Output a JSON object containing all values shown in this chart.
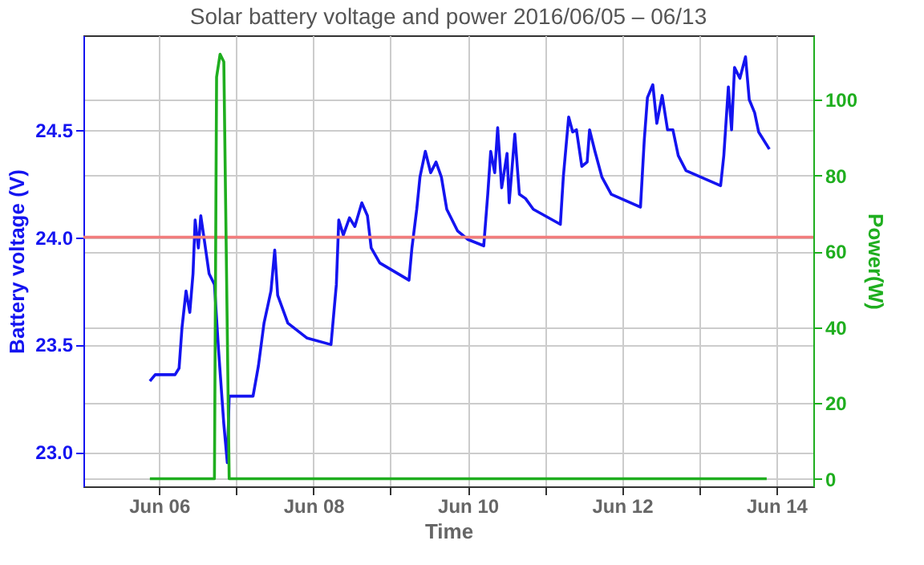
{
  "chart_data": {
    "type": "line",
    "title": "Solar battery voltage and power   2016/06/05 – 06/13",
    "xlabel": "Time",
    "ylabel": "Battery voltage (V)",
    "y2label": "Power(W)",
    "x": [
      "2016-06-05T21:10",
      "2016-06-05T22:50",
      "2016-06-06T05:00",
      "2016-06-06T06:15",
      "2016-06-06T07:10",
      "2016-06-06T08:25",
      "2016-06-06T09:35",
      "2016-06-06T10:35",
      "2016-06-06T11:15",
      "2016-06-06T12:15",
      "2016-06-06T13:00",
      "2016-06-06T14:10",
      "2016-06-06T15:35",
      "2016-06-06T17:15",
      "2016-06-06T18:30",
      "2016-06-06T20:10",
      "2016-06-06T21:15",
      "2016-06-06T21:50",
      "2016-06-07T05:15",
      "2016-06-07T06:55",
      "2016-06-07T08:40",
      "2016-06-07T09:50",
      "2016-06-07T10:50",
      "2016-06-07T12:00",
      "2016-06-07T12:55",
      "2016-06-07T16:05",
      "2016-06-07T22:05",
      "2016-06-08T05:30",
      "2016-06-08T07:10",
      "2016-06-08T07:55",
      "2016-06-08T09:20",
      "2016-06-08T11:15",
      "2016-06-08T12:55",
      "2016-06-08T15:05",
      "2016-06-08T16:50",
      "2016-06-08T18:00",
      "2016-06-08T20:40",
      "2016-06-09T05:45",
      "2016-06-09T06:40",
      "2016-06-09T08:10",
      "2016-06-09T09:10",
      "2016-06-09T10:50",
      "2016-06-09T12:30",
      "2016-06-09T14:10",
      "2016-06-09T15:50",
      "2016-06-09T17:30",
      "2016-06-09T20:50",
      "2016-06-10T00:00",
      "2016-06-10T05:00",
      "2016-06-10T06:15",
      "2016-06-10T07:10",
      "2016-06-10T08:25",
      "2016-06-10T09:20",
      "2016-06-10T10:35",
      "2016-06-10T12:15",
      "2016-06-10T12:55",
      "2016-06-10T14:40",
      "2016-06-10T16:05",
      "2016-06-10T18:00",
      "2016-06-10T20:25",
      "2016-06-11T04:50",
      "2016-06-11T05:45",
      "2016-06-11T07:25",
      "2016-06-11T08:40",
      "2016-06-11T09:50",
      "2016-06-11T11:30",
      "2016-06-11T13:10",
      "2016-06-11T13:55",
      "2016-06-11T15:35",
      "2016-06-11T17:45",
      "2016-06-11T20:40",
      "2016-06-12T05:45",
      "2016-06-12T06:55",
      "2016-06-12T07:55",
      "2016-06-12T09:35",
      "2016-06-12T10:50",
      "2016-06-12T12:30",
      "2016-06-12T14:10",
      "2016-06-12T15:50",
      "2016-06-12T17:30",
      "2016-06-12T19:55",
      "2016-06-13T06:40",
      "2016-06-13T07:40",
      "2016-06-13T09:05",
      "2016-06-13T10:05",
      "2016-06-13T11:00",
      "2016-06-13T12:40",
      "2016-06-13T14:25",
      "2016-06-13T15:35",
      "2016-06-13T17:15",
      "2016-06-13T18:30",
      "2016-06-13T21:50"
    ],
    "series": [
      {
        "color": "#1414f0",
        "values": [
          23.33,
          23.36,
          23.36,
          23.39,
          23.58,
          23.75,
          23.65,
          23.83,
          24.08,
          23.95,
          24.1,
          23.98,
          23.83,
          23.78,
          23.48,
          23.13,
          22.95,
          23.26,
          23.26,
          23.4,
          23.6,
          23.68,
          23.75,
          23.94,
          23.73,
          23.6,
          23.53,
          23.5,
          23.78,
          24.08,
          24.01,
          24.09,
          24.05,
          24.16,
          24.1,
          23.95,
          23.88,
          23.8,
          23.95,
          24.13,
          24.28,
          24.4,
          24.3,
          24.35,
          24.28,
          24.13,
          24.03,
          23.99,
          23.96,
          24.2,
          24.4,
          24.3,
          24.51,
          24.23,
          24.39,
          24.16,
          24.48,
          24.2,
          24.18,
          24.13,
          24.06,
          24.28,
          24.56,
          24.49,
          24.5,
          24.33,
          24.35,
          24.5,
          24.4,
          24.28,
          24.2,
          24.14,
          24.45,
          24.65,
          24.71,
          24.53,
          24.66,
          24.5,
          24.5,
          24.38,
          24.31,
          24.24,
          24.38,
          24.7,
          24.5,
          24.79,
          24.74,
          24.84,
          24.64,
          24.58,
          24.49,
          24.41
        ]
      },
      {
        "color": "#1fae1f",
        "axis": "y2",
        "x": [
          "2016-06-05T21:10",
          "2016-06-06T17:15",
          "2016-06-06T17:55",
          "2016-06-06T19:00",
          "2016-06-06T20:10",
          "2016-06-06T21:50",
          "2016-06-13T21:00"
        ],
        "values": [
          0,
          0,
          106,
          112,
          110,
          0,
          0
        ]
      }
    ],
    "xlim": [
      "2016-06-05T00:30",
      "2016-06-14T11:30"
    ],
    "xticks": [
      {
        "value": "2016-06-06",
        "label": "Jun 06"
      },
      {
        "value": "2016-06-07",
        "label": null
      },
      {
        "value": "2016-06-08",
        "label": "Jun 08"
      },
      {
        "value": "2016-06-09",
        "label": null
      },
      {
        "value": "2016-06-10",
        "label": "Jun 10"
      },
      {
        "value": "2016-06-11",
        "label": null
      },
      {
        "value": "2016-06-12",
        "label": "Jun 12"
      },
      {
        "value": "2016-06-13",
        "label": null
      },
      {
        "value": "2016-06-14",
        "label": "Jun 14"
      }
    ],
    "ylim": [
      22.84,
      24.94
    ],
    "yticks": [
      {
        "value": 23,
        "label": "23.0"
      },
      {
        "value": 23.5,
        "label": "23.5"
      },
      {
        "value": 24,
        "label": "24.0"
      },
      {
        "value": 24.5,
        "label": "24.5"
      }
    ],
    "y2lim": [
      -2,
      117
    ],
    "y2ticks": [
      0,
      20,
      40,
      60,
      80,
      100
    ],
    "ref_lines": [
      {
        "axis": "y",
        "value": 24,
        "color": "#f27c7c"
      }
    ],
    "grid": true,
    "line_style": "solid"
  }
}
